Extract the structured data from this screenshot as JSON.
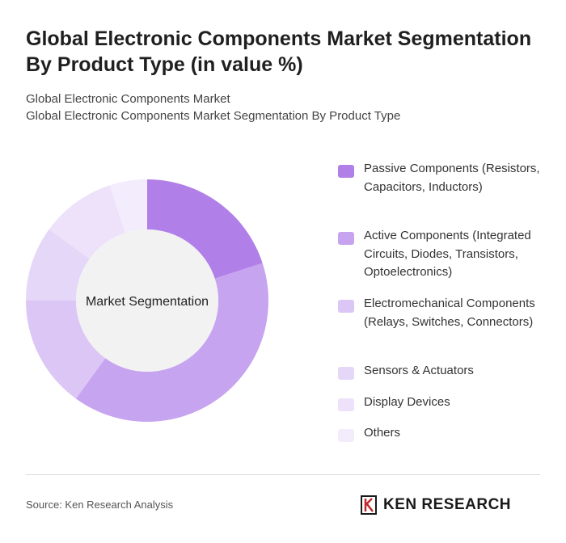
{
  "header": {
    "title": "Global Electronic Components Market Segmentation By Product Type (in value %)",
    "subtitle_line1": "Global Electronic Components Market",
    "subtitle_line2": "Global Electronic Components Market Segmentation By Product Type"
  },
  "chart_data": {
    "type": "pie",
    "variant": "donut",
    "center_label": "Market Segmentation",
    "legend_placement": "right",
    "series": [
      {
        "name": "Passive Components (Resistors, Capacitors, Inductors)",
        "value": 20,
        "color": "#b07fe8"
      },
      {
        "name": "Active Components (Integrated Circuits, Diodes, Transistors, Optoelectronics)",
        "value": 40,
        "color": "#c7a4f0"
      },
      {
        "name": "Electromechanical Components (Relays, Switches, Connectors)",
        "value": 15,
        "color": "#dcc6f6"
      },
      {
        "name": "Sensors & Actuators",
        "value": 10,
        "color": "#e5d7f8"
      },
      {
        "name": "Display Devices",
        "value": 10,
        "color": "#ede2fa"
      },
      {
        "name": "Others",
        "value": 5,
        "color": "#f3ecfc"
      }
    ]
  },
  "footer": {
    "source": "Source: Ken Research Analysis",
    "logo_text": "KEN RESEARCH"
  }
}
